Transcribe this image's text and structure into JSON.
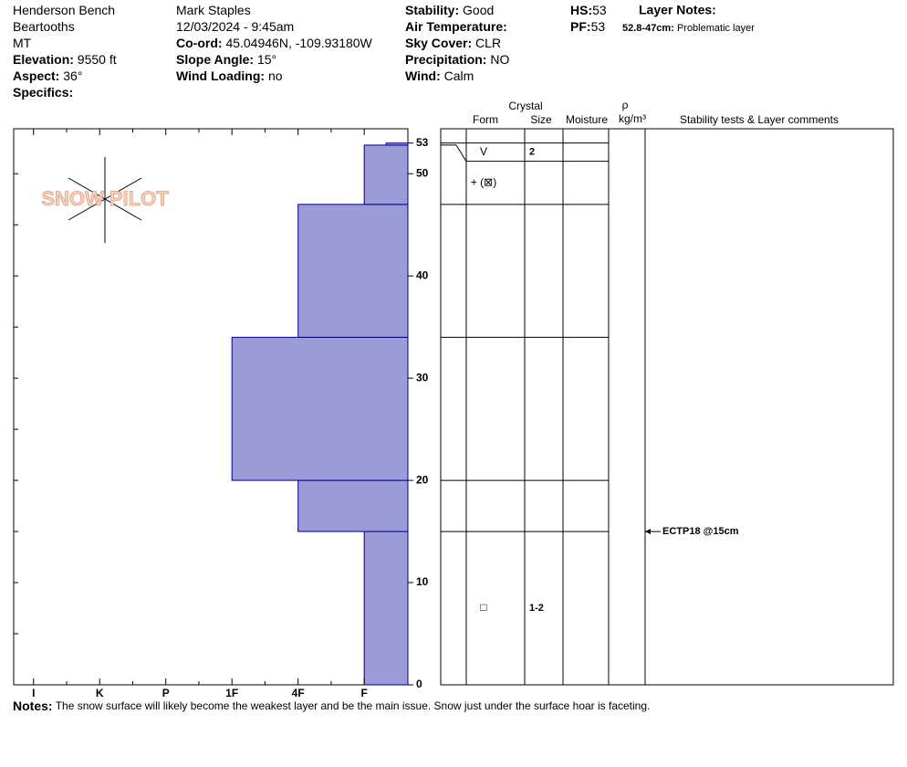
{
  "header": {
    "columns": [
      [
        {
          "value": "Henderson Bench"
        },
        {
          "value": "Beartooths"
        },
        {
          "value": "MT"
        },
        {
          "label": "Elevation:",
          "value": "9550 ft"
        },
        {
          "label": "Aspect:",
          "value": "36°"
        },
        {
          "label": "Specifics:"
        }
      ],
      [
        {
          "value": "Mark Staples"
        },
        {
          "value": "12/03/2024 - 9:45am"
        },
        {
          "label": "Co-ord:",
          "value": "45.04946N, -109.93180W"
        },
        {
          "label": "Slope Angle:",
          "value": "15°"
        },
        {
          "label": "Wind Loading:",
          "value": "no"
        }
      ],
      [
        {
          "label": "Stability:",
          "value": "Good"
        },
        {
          "label": "Air Temperature:"
        },
        {
          "label": "Sky Cover:",
          "value": "CLR"
        },
        {
          "label": "Precipitation:",
          "value": "NO"
        },
        {
          "label": "Wind:",
          "value": " Calm"
        }
      ],
      [
        {
          "label": "HS:",
          "value": "53"
        },
        {
          "label": "PF:",
          "value": "53"
        }
      ]
    ],
    "layer_notes_title": "Layer Notes:",
    "layer_note": {
      "label": "52.8-47cm:",
      "value": "Problematic layer"
    }
  },
  "logo": "SNOW PILOT",
  "chart_data": {
    "type": "hardness-profile",
    "color": "#9b9bd7",
    "ylim": [
      0,
      54.4
    ],
    "yticks": [
      0,
      10,
      20,
      30,
      40,
      50,
      53
    ],
    "xlim": [
      6.3,
      0.34
    ],
    "xticks": [
      {
        "value": 6,
        "label": "I"
      },
      {
        "value": 5,
        "label": "K"
      },
      {
        "value": 4,
        "label": "P"
      },
      {
        "value": 3,
        "label": "1F"
      },
      {
        "value": 2,
        "label": "4F"
      },
      {
        "value": 1,
        "label": "F"
      }
    ],
    "layers": [
      {
        "bottom": 0,
        "top": 15,
        "hardness": 1,
        "form": "□",
        "size": "1-2"
      },
      {
        "bottom": 15,
        "top": 20,
        "hardness": 2
      },
      {
        "bottom": 20,
        "top": 34,
        "hardness": 3
      },
      {
        "bottom": 34,
        "top": 47,
        "hardness": 2
      },
      {
        "bottom": 47,
        "top": 52.8,
        "hardness": 1,
        "form": "+ (⊠)"
      },
      {
        "bottom": 52.8,
        "top": 53,
        "hardness": 0.67,
        "form": "V",
        "size": "2"
      }
    ],
    "table_headers": {
      "crystal": "Crystal",
      "form": "Form",
      "size": "Size",
      "moisture": "Moisture",
      "rho": "ρ",
      "density": "kg/m³",
      "comments": "Stability tests & Layer comments"
    },
    "comments": [
      {
        "height": 15,
        "text": "ECTP18 @15cm"
      }
    ]
  },
  "notes": {
    "label": "Notes:",
    "text": "The snow surface will likely become the weakest layer and be the main issue. Snow just under the surface hoar is faceting."
  }
}
